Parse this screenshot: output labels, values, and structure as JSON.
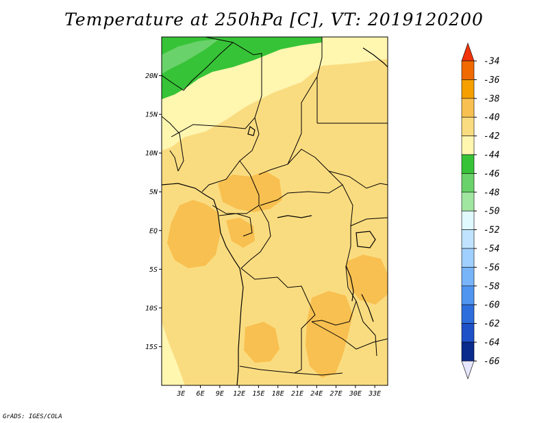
{
  "title": "Temperature at 250hPa [C], VT: 2019120200",
  "credit": "GrADS: IGES/COLA",
  "map": {
    "lon_range": [
      0,
      35
    ],
    "lat_range": [
      -20,
      25
    ],
    "lat_ticks": [
      {
        "value": 20,
        "label": "20N"
      },
      {
        "value": 15,
        "label": "15N"
      },
      {
        "value": 10,
        "label": "10N"
      },
      {
        "value": 5,
        "label": "5N"
      },
      {
        "value": 0,
        "label": "EQ"
      },
      {
        "value": -5,
        "label": "5S"
      },
      {
        "value": -10,
        "label": "10S"
      },
      {
        "value": -15,
        "label": "15S"
      }
    ],
    "lon_ticks": [
      {
        "value": 3,
        "label": "3E"
      },
      {
        "value": 6,
        "label": "6E"
      },
      {
        "value": 9,
        "label": "9E"
      },
      {
        "value": 12,
        "label": "12E"
      },
      {
        "value": 15,
        "label": "15E"
      },
      {
        "value": 18,
        "label": "18E"
      },
      {
        "value": 21,
        "label": "21E"
      },
      {
        "value": 24,
        "label": "24E"
      },
      {
        "value": 27,
        "label": "27E"
      },
      {
        "value": 30,
        "label": "30E"
      },
      {
        "value": 33,
        "label": "33E"
      }
    ]
  },
  "colorbar": {
    "labels": [
      "-34",
      "-36",
      "-38",
      "-40",
      "-42",
      "-44",
      "-46",
      "-48",
      "-50",
      "-52",
      "-54",
      "-56",
      "-58",
      "-60",
      "-62",
      "-64",
      "-66"
    ],
    "colors": [
      "#e03010",
      "#f06a00",
      "#f5a000",
      "#f8c050",
      "#fadc80",
      "#fff6b0",
      "#37c337",
      "#6ad26a",
      "#a0e6a0",
      "#e0f8ff",
      "#c0e4ff",
      "#a0d0ff",
      "#78b4f8",
      "#5096f0",
      "#2e6edc",
      "#1e50c8",
      "#0a2a8c",
      "#0a0a70"
    ],
    "top_arrow_color": "#f0330a",
    "bottom_arrow_color": "#e6e6ff"
  },
  "fields": {
    "color_base": "#fadc80",
    "color_warm": "#f8c050",
    "color_cool": "#fff6b0",
    "color_green": "#37c337",
    "color_green_light": "#6ad26a"
  }
}
